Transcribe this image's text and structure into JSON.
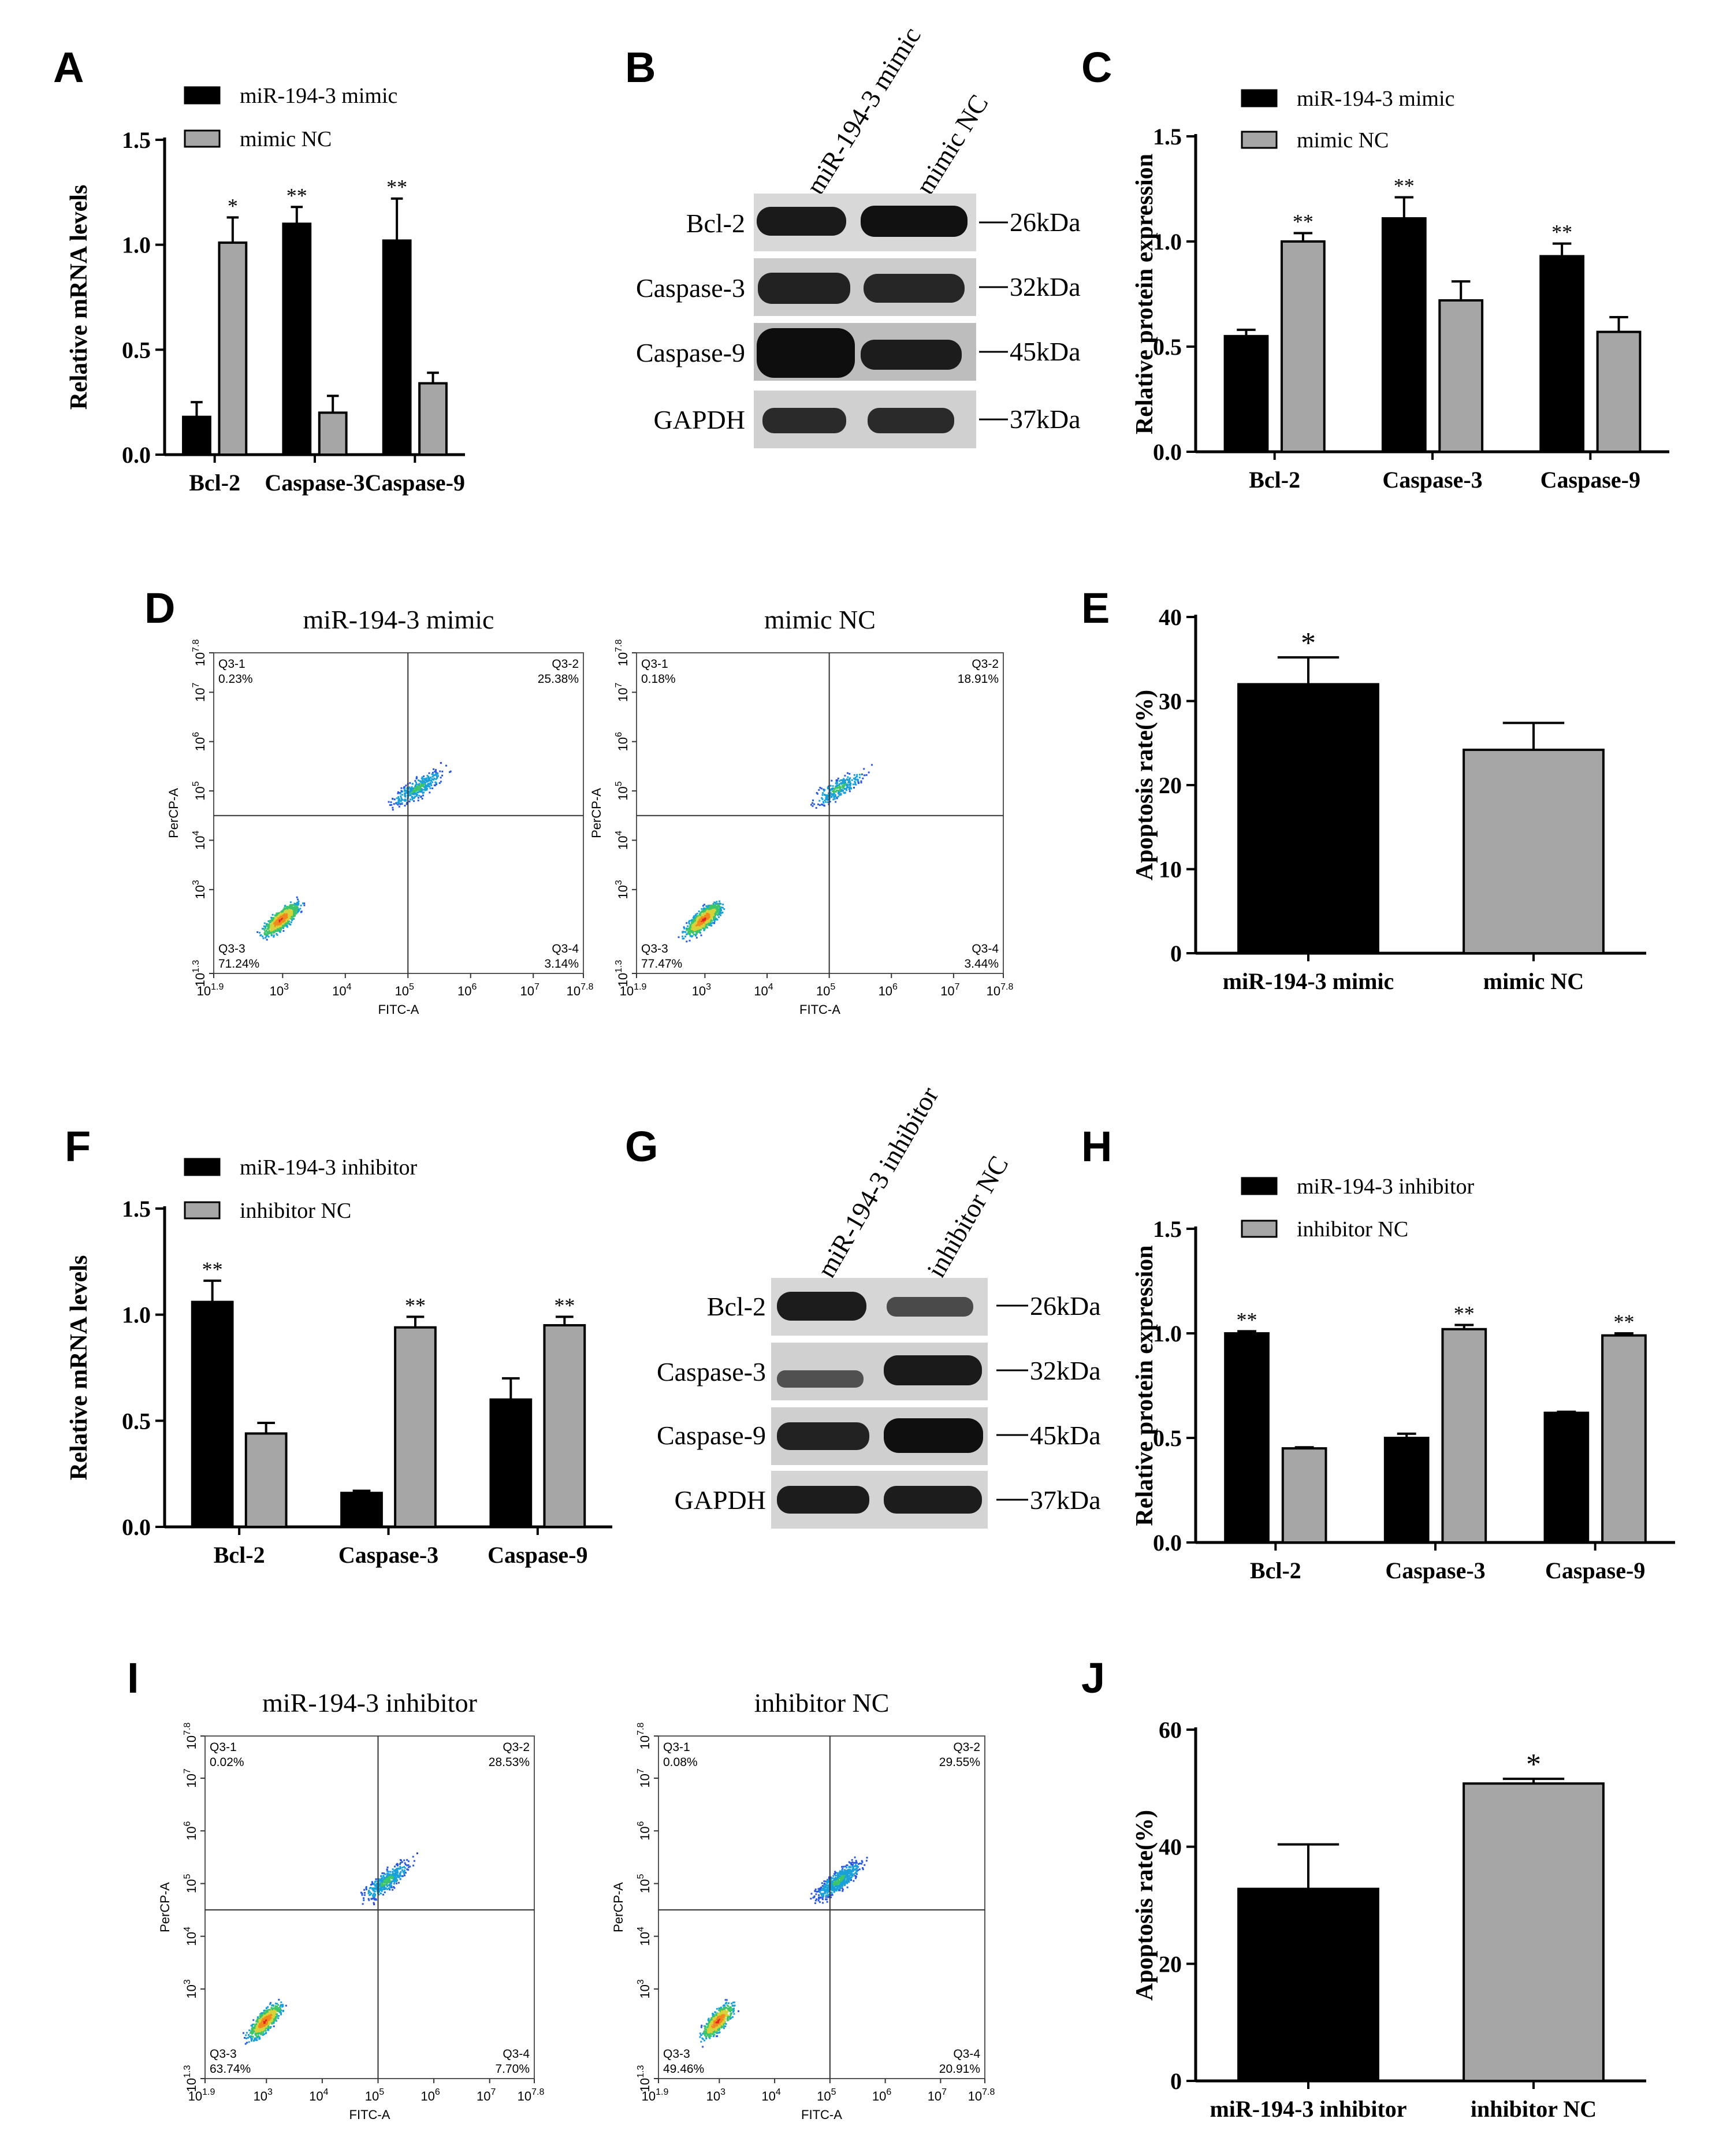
{
  "panel_labels": {
    "A": "A",
    "B": "B",
    "C": "C",
    "D": "D",
    "E": "E",
    "F": "F",
    "G": "G",
    "H": "H",
    "I": "I",
    "J": "J"
  },
  "colors": {
    "series1": "#000000",
    "series2": "#a6a6a6"
  },
  "chart_data": [
    {
      "id": "A",
      "type": "bar",
      "ylabel": "Relative mRNA levels",
      "ylim": [
        0,
        1.5
      ],
      "yticks": [
        "0.0",
        "0.5",
        "1.0",
        "1.5"
      ],
      "categories": [
        "Bcl-2",
        "Caspase-3",
        "Caspase-9"
      ],
      "series": [
        {
          "name": "miR-194-3 mimic",
          "values": [
            0.18,
            1.1,
            1.02
          ],
          "errors": [
            0.07,
            0.08,
            0.2
          ],
          "sig": [
            "",
            "**",
            "**"
          ]
        },
        {
          "name": "mimic NC",
          "values": [
            1.01,
            0.2,
            0.34
          ],
          "errors": [
            0.12,
            0.08,
            0.05
          ],
          "sig": [
            "*",
            "",
            ""
          ]
        }
      ]
    },
    {
      "id": "C",
      "type": "bar",
      "ylabel": "Relative protein expression",
      "ylim": [
        0,
        1.5
      ],
      "yticks": [
        "0.0",
        "0.5",
        "1.0",
        "1.5"
      ],
      "categories": [
        "Bcl-2",
        "Caspase-3",
        "Caspase-9"
      ],
      "series": [
        {
          "name": "miR-194-3 mimic",
          "values": [
            0.55,
            1.11,
            0.93
          ],
          "errors": [
            0.03,
            0.1,
            0.06
          ],
          "sig": [
            "",
            "**",
            "**"
          ]
        },
        {
          "name": "mimic NC",
          "values": [
            1.0,
            0.72,
            0.57
          ],
          "errors": [
            0.04,
            0.09,
            0.07
          ],
          "sig": [
            "**",
            "",
            ""
          ]
        }
      ]
    },
    {
      "id": "E",
      "type": "bar",
      "ylabel": "Apoptosis rate(%)",
      "ylim": [
        0,
        40
      ],
      "yticks": [
        "0",
        "10",
        "20",
        "30",
        "40"
      ],
      "categories": [
        "miR-194-3 mimic",
        "mimic NC"
      ],
      "series": [
        {
          "name": "Apoptosis rate",
          "values": [
            32.0,
            24.2
          ],
          "errors": [
            3.2,
            3.2
          ],
          "sig": [
            "*",
            ""
          ]
        }
      ]
    },
    {
      "id": "F",
      "type": "bar",
      "ylabel": "Relative mRNA levels",
      "ylim": [
        0,
        1.5
      ],
      "yticks": [
        "0.0",
        "0.5",
        "1.0",
        "1.5"
      ],
      "categories": [
        "Bcl-2",
        "Caspase-3",
        "Caspase-9"
      ],
      "series": [
        {
          "name": "miR-194-3 inhibitor",
          "values": [
            1.06,
            0.16,
            0.6
          ],
          "errors": [
            0.1,
            0.01,
            0.1
          ],
          "sig": [
            "**",
            "",
            ""
          ]
        },
        {
          "name": "inhibitor NC",
          "values": [
            0.44,
            0.94,
            0.95
          ],
          "errors": [
            0.05,
            0.05,
            0.04
          ],
          "sig": [
            "",
            "**",
            "**"
          ]
        }
      ]
    },
    {
      "id": "H",
      "type": "bar",
      "ylabel": "Relative protein expression",
      "ylim": [
        0,
        1.5
      ],
      "yticks": [
        "0.0",
        "0.5",
        "1.0",
        "1.5"
      ],
      "categories": [
        "Bcl-2",
        "Caspase-3",
        "Caspase-9"
      ],
      "series": [
        {
          "name": "miR-194-3 inhibitor",
          "values": [
            1.0,
            0.5,
            0.62
          ],
          "errors": [
            0.01,
            0.02,
            0.005
          ],
          "sig": [
            "**",
            "",
            ""
          ]
        },
        {
          "name": "inhibitor NC",
          "values": [
            0.45,
            1.02,
            0.99
          ],
          "errors": [
            0.005,
            0.02,
            0.01
          ],
          "sig": [
            "",
            "**",
            "**"
          ]
        }
      ]
    },
    {
      "id": "J",
      "type": "bar",
      "ylabel": "Apoptosis rate(%)",
      "ylim": [
        0,
        60
      ],
      "yticks": [
        "0",
        "20",
        "40",
        "60"
      ],
      "categories": [
        "miR-194-3 inhibitor",
        "inhibitor NC"
      ],
      "series": [
        {
          "name": "Apoptosis rate",
          "values": [
            32.8,
            50.8
          ],
          "errors": [
            7.6,
            0.8
          ],
          "sig": [
            "",
            "*"
          ]
        }
      ]
    }
  ],
  "westerns": [
    {
      "id": "B",
      "lanes": [
        "miR-194-3 mimic",
        "mimic NC"
      ],
      "bands": [
        {
          "protein": "Bcl-2",
          "size": "26kDa"
        },
        {
          "protein": "Caspase-3",
          "size": "32kDa"
        },
        {
          "protein": "Caspase-9",
          "size": "45kDa"
        },
        {
          "protein": "GAPDH",
          "size": "37kDa"
        }
      ]
    },
    {
      "id": "G",
      "lanes": [
        "miR-194-3 inhibitor",
        "inhibitor NC"
      ],
      "bands": [
        {
          "protein": "Bcl-2",
          "size": "26kDa"
        },
        {
          "protein": "Caspase-3",
          "size": "32kDa"
        },
        {
          "protein": "Caspase-9",
          "size": "45kDa"
        },
        {
          "protein": "GAPDH",
          "size": "37kDa"
        }
      ]
    }
  ],
  "flow": [
    {
      "id": "D1",
      "title": "miR-194-3 mimic",
      "q1": "Q3-1",
      "q1v": "0.23%",
      "q2": "Q3-2",
      "q2v": "25.38%",
      "q3": "Q3-3",
      "q3v": "71.24%",
      "q4": "Q3-4",
      "q4v": "3.14%"
    },
    {
      "id": "D2",
      "title": "mimic NC",
      "q1": "Q3-1",
      "q1v": "0.18%",
      "q2": "Q3-2",
      "q2v": "18.91%",
      "q3": "Q3-3",
      "q3v": "77.47%",
      "q4": "Q3-4",
      "q4v": "3.44%"
    },
    {
      "id": "I1",
      "title": "miR-194-3 inhibitor",
      "q1": "Q3-1",
      "q1v": "0.02%",
      "q2": "Q3-2",
      "q2v": "28.53%",
      "q3": "Q3-3",
      "q3v": "63.74%",
      "q4": "Q3-4",
      "q4v": "7.70%"
    },
    {
      "id": "I2",
      "title": "inhibitor NC",
      "q1": "Q3-1",
      "q1v": "0.08%",
      "q2": "Q3-2",
      "q2v": "29.55%",
      "q3": "Q3-3",
      "q3v": "49.46%",
      "q4": "Q3-4",
      "q4v": "20.91%"
    }
  ],
  "flow_axes": {
    "xlabel": "FITC-A",
    "ylabel": "PerCP-A",
    "xticks": [
      {
        "b": "10",
        "e": "1.9"
      },
      {
        "b": "10",
        "e": "3"
      },
      {
        "b": "10",
        "e": "4"
      },
      {
        "b": "10",
        "e": "5"
      },
      {
        "b": "10",
        "e": "6"
      },
      {
        "b": "10",
        "e": "7"
      },
      {
        "b": "10",
        "e": "7.8"
      }
    ],
    "yticks": [
      {
        "b": "10",
        "e": "1.3"
      },
      {
        "b": "10",
        "e": "3"
      },
      {
        "b": "10",
        "e": "4"
      },
      {
        "b": "10",
        "e": "5"
      },
      {
        "b": "10",
        "e": "6"
      },
      {
        "b": "10",
        "e": "7"
      },
      {
        "b": "10",
        "e": "7.8"
      }
    ]
  }
}
